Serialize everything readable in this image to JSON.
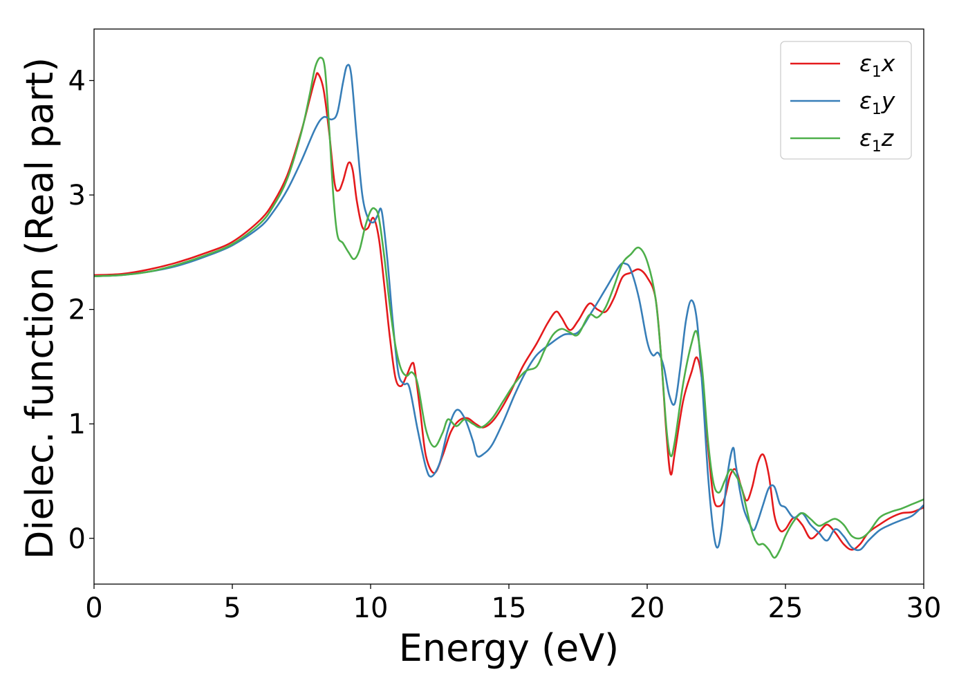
{
  "chart_data": {
    "type": "line",
    "title": "",
    "xlabel": "Energy (eV)",
    "ylabel": "Dielec. function (Real part)",
    "xlim": [
      0,
      30
    ],
    "ylim": [
      -0.4,
      4.45
    ],
    "xticks": [
      0,
      5,
      10,
      15,
      20,
      25,
      30
    ],
    "xtick_labels": [
      "0",
      "5",
      "10",
      "15",
      "20",
      "25",
      "30"
    ],
    "yticks": [
      0,
      1,
      2,
      3,
      4
    ],
    "ytick_labels": [
      "0",
      "1",
      "2",
      "3",
      "4"
    ],
    "grid": false,
    "legend_position": "top-right",
    "series": [
      {
        "name": "ε1x",
        "legend_main": "ε",
        "legend_sub": "1",
        "legend_suffix": "x",
        "color": "#e41a1c",
        "x": [
          0,
          1,
          2,
          3,
          4,
          5,
          6,
          6.5,
          7,
          7.5,
          7.8,
          8.0,
          8.1,
          8.3,
          8.5,
          8.7,
          8.85,
          9.0,
          9.2,
          9.35,
          9.5,
          9.7,
          9.9,
          10.1,
          10.3,
          10.5,
          10.7,
          10.9,
          11.1,
          11.3,
          11.5,
          11.6,
          11.8,
          12.0,
          12.3,
          12.6,
          12.9,
          13.2,
          13.5,
          13.8,
          14.1,
          14.5,
          15.0,
          15.5,
          16.0,
          16.4,
          16.7,
          16.9,
          17.2,
          17.5,
          17.9,
          18.2,
          18.5,
          18.8,
          19.1,
          19.4,
          19.7,
          20.0,
          20.3,
          20.5,
          20.7,
          20.85,
          21.0,
          21.3,
          21.6,
          21.8,
          22.0,
          22.2,
          22.4,
          22.6,
          22.8,
          23.0,
          23.2,
          23.4,
          23.6,
          23.8,
          24.0,
          24.2,
          24.4,
          24.6,
          24.8,
          25.0,
          25.3,
          25.6,
          25.9,
          26.2,
          26.5,
          26.8,
          27.1,
          27.4,
          27.7,
          28.0,
          28.4,
          28.8,
          29.2,
          29.6,
          30.0
        ],
        "y": [
          2.3,
          2.31,
          2.35,
          2.41,
          2.49,
          2.59,
          2.78,
          2.94,
          3.18,
          3.56,
          3.84,
          4.02,
          4.06,
          3.92,
          3.55,
          3.1,
          3.04,
          3.12,
          3.28,
          3.22,
          2.95,
          2.72,
          2.71,
          2.8,
          2.62,
          2.2,
          1.75,
          1.4,
          1.33,
          1.42,
          1.53,
          1.47,
          1.1,
          0.72,
          0.57,
          0.72,
          0.93,
          1.03,
          1.05,
          1.0,
          0.97,
          1.05,
          1.25,
          1.5,
          1.7,
          1.88,
          1.98,
          1.93,
          1.82,
          1.9,
          2.05,
          2.0,
          1.98,
          2.1,
          2.28,
          2.32,
          2.35,
          2.28,
          2.1,
          1.6,
          0.9,
          0.56,
          0.75,
          1.2,
          1.45,
          1.58,
          1.35,
          0.8,
          0.35,
          0.28,
          0.35,
          0.55,
          0.6,
          0.45,
          0.33,
          0.45,
          0.66,
          0.73,
          0.55,
          0.2,
          0.07,
          0.08,
          0.18,
          0.12,
          0.0,
          0.05,
          0.12,
          0.05,
          -0.05,
          -0.1,
          -0.05,
          0.05,
          0.12,
          0.18,
          0.22,
          0.23,
          0.27
        ]
      },
      {
        "name": "ε1y",
        "legend_main": "ε",
        "legend_sub": "1",
        "legend_suffix": "y",
        "color": "#377eb8",
        "x": [
          0,
          1,
          2,
          3,
          4,
          5,
          6,
          6.5,
          7,
          7.5,
          8.0,
          8.3,
          8.6,
          8.8,
          9.0,
          9.15,
          9.3,
          9.5,
          9.7,
          9.9,
          10.1,
          10.25,
          10.4,
          10.6,
          10.8,
          11.0,
          11.2,
          11.4,
          11.7,
          12.0,
          12.2,
          12.5,
          12.8,
          13.1,
          13.4,
          13.7,
          13.85,
          14.1,
          14.4,
          14.8,
          15.2,
          15.6,
          16.0,
          16.5,
          17.0,
          17.5,
          18.0,
          18.5,
          19.0,
          19.2,
          19.4,
          19.7,
          20.0,
          20.2,
          20.4,
          20.6,
          20.8,
          21.0,
          21.2,
          21.4,
          21.6,
          21.8,
          22.0,
          22.2,
          22.4,
          22.55,
          22.7,
          22.9,
          23.1,
          23.2,
          23.35,
          23.5,
          23.7,
          23.85,
          24.0,
          24.2,
          24.4,
          24.6,
          24.8,
          25.0,
          25.3,
          25.6,
          25.9,
          26.2,
          26.5,
          26.8,
          27.1,
          27.4,
          27.7,
          28.0,
          28.4,
          28.8,
          29.2,
          29.6,
          30.0
        ],
        "y": [
          2.29,
          2.3,
          2.33,
          2.38,
          2.46,
          2.56,
          2.72,
          2.86,
          3.05,
          3.3,
          3.58,
          3.68,
          3.66,
          3.72,
          3.98,
          4.13,
          4.05,
          3.5,
          3.0,
          2.8,
          2.76,
          2.82,
          2.86,
          2.45,
          1.9,
          1.45,
          1.35,
          1.32,
          0.95,
          0.62,
          0.54,
          0.66,
          0.95,
          1.12,
          1.05,
          0.85,
          0.72,
          0.74,
          0.82,
          1.02,
          1.25,
          1.45,
          1.6,
          1.7,
          1.78,
          1.8,
          1.98,
          2.18,
          2.38,
          2.4,
          2.35,
          2.1,
          1.72,
          1.6,
          1.62,
          1.5,
          1.25,
          1.18,
          1.5,
          1.9,
          2.08,
          1.9,
          1.3,
          0.55,
          0.05,
          -0.08,
          0.1,
          0.55,
          0.79,
          0.65,
          0.42,
          0.25,
          0.13,
          0.07,
          0.15,
          0.3,
          0.44,
          0.45,
          0.3,
          0.27,
          0.18,
          0.22,
          0.12,
          0.05,
          -0.02,
          0.08,
          0.02,
          -0.08,
          -0.1,
          -0.02,
          0.07,
          0.12,
          0.16,
          0.2,
          0.29
        ]
      },
      {
        "name": "ε1z",
        "legend_main": "ε",
        "legend_sub": "1",
        "legend_suffix": "z",
        "color": "#4daf4a",
        "x": [
          0,
          1,
          2,
          3,
          4,
          5,
          6,
          6.5,
          7,
          7.5,
          7.8,
          8.0,
          8.2,
          8.35,
          8.5,
          8.65,
          8.8,
          9.0,
          9.2,
          9.4,
          9.6,
          9.8,
          10.0,
          10.15,
          10.3,
          10.5,
          10.7,
          10.9,
          11.1,
          11.3,
          11.5,
          11.7,
          12.0,
          12.3,
          12.6,
          12.8,
          13.1,
          13.4,
          13.7,
          14.0,
          14.4,
          14.8,
          15.2,
          15.6,
          16.0,
          16.3,
          16.6,
          16.9,
          17.2,
          17.5,
          17.9,
          18.2,
          18.5,
          18.8,
          19.1,
          19.4,
          19.7,
          20.0,
          20.3,
          20.5,
          20.7,
          20.85,
          21.0,
          21.3,
          21.6,
          21.8,
          22.0,
          22.2,
          22.4,
          22.6,
          22.8,
          23.0,
          23.2,
          23.4,
          23.6,
          23.8,
          24.0,
          24.2,
          24.4,
          24.6,
          24.8,
          25.0,
          25.3,
          25.6,
          25.9,
          26.2,
          26.5,
          26.8,
          27.1,
          27.4,
          27.7,
          28.0,
          28.4,
          28.8,
          29.2,
          29.6,
          30.0
        ],
        "y": [
          2.29,
          2.3,
          2.33,
          2.39,
          2.47,
          2.57,
          2.75,
          2.91,
          3.15,
          3.55,
          3.88,
          4.12,
          4.2,
          4.1,
          3.6,
          3.0,
          2.65,
          2.58,
          2.5,
          2.44,
          2.52,
          2.72,
          2.86,
          2.88,
          2.8,
          2.45,
          2.02,
          1.68,
          1.48,
          1.42,
          1.45,
          1.35,
          0.95,
          0.8,
          0.92,
          1.04,
          0.98,
          1.04,
          1.0,
          0.97,
          1.05,
          1.2,
          1.35,
          1.46,
          1.5,
          1.65,
          1.78,
          1.83,
          1.8,
          1.78,
          1.95,
          1.93,
          2.02,
          2.2,
          2.4,
          2.48,
          2.54,
          2.42,
          2.1,
          1.6,
          0.95,
          0.72,
          0.85,
          1.35,
          1.7,
          1.8,
          1.45,
          0.85,
          0.48,
          0.4,
          0.5,
          0.6,
          0.55,
          0.45,
          0.25,
          0.05,
          -0.05,
          -0.05,
          -0.1,
          -0.17,
          -0.1,
          0.02,
          0.15,
          0.22,
          0.17,
          0.11,
          0.14,
          0.17,
          0.12,
          0.02,
          0.0,
          0.05,
          0.18,
          0.23,
          0.26,
          0.3,
          0.34
        ]
      }
    ]
  }
}
